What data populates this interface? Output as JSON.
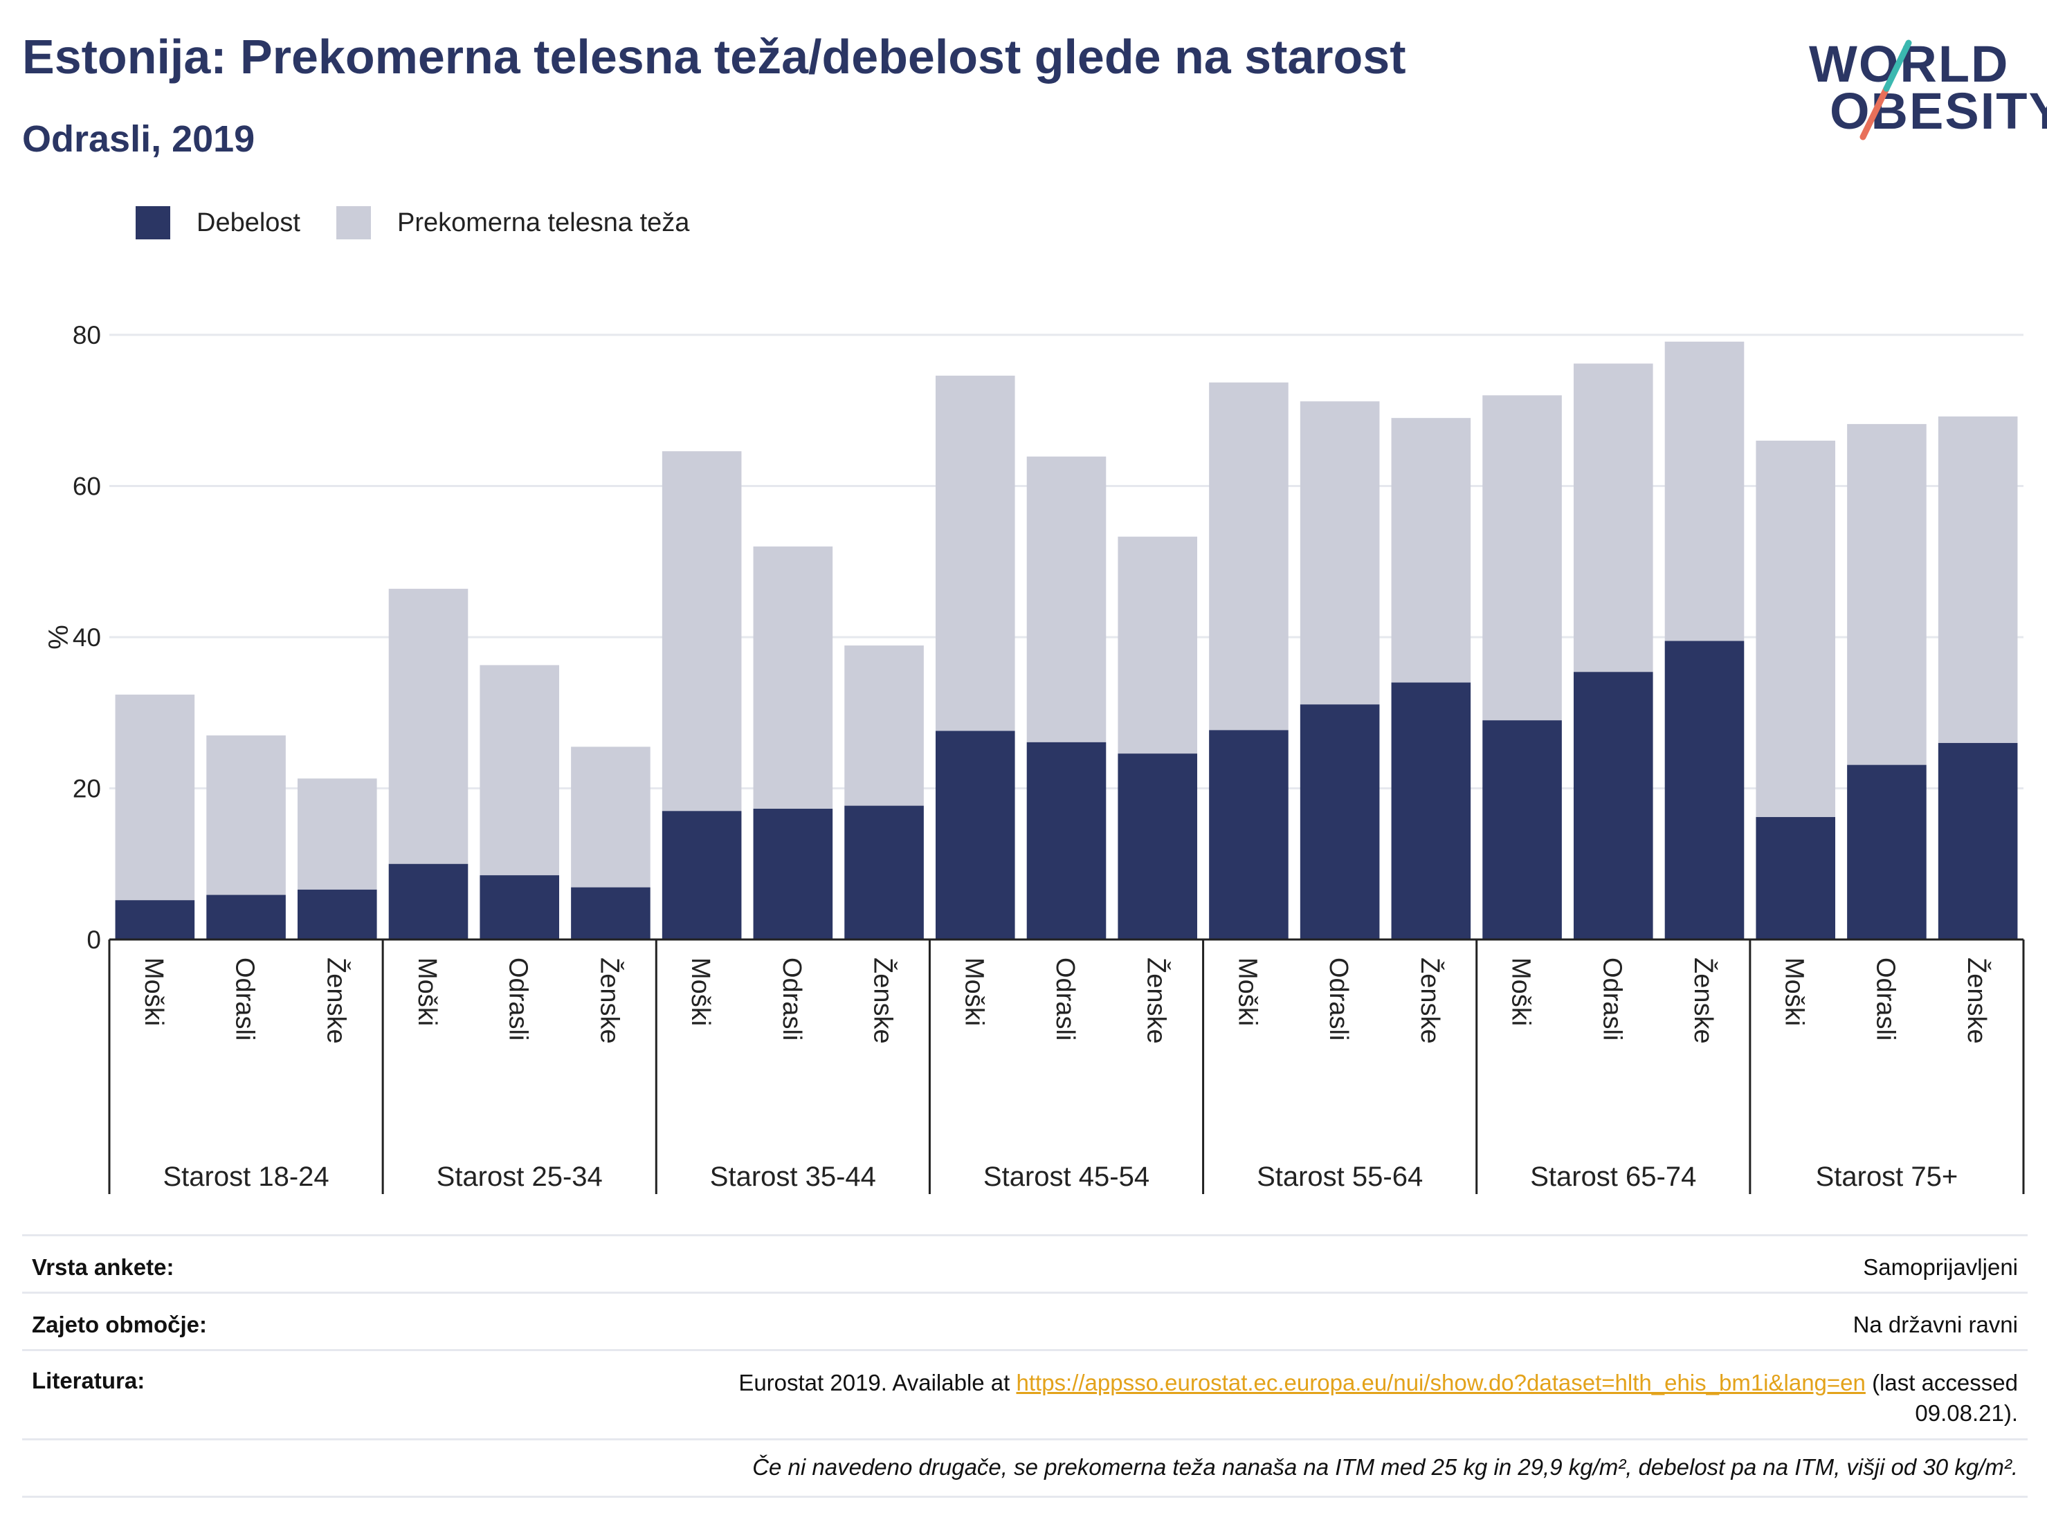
{
  "header": {
    "title": "Estonija: Prekomerna telesna teža/debelost glede na starost",
    "subtitle": "Odrasli, 2019"
  },
  "logo": {
    "line1": "WORLD",
    "line2": "OBESITY"
  },
  "legend": [
    {
      "label": "Debelost",
      "color": "#2b3664"
    },
    {
      "label": "Prekomerna telesna teža",
      "color": "#cbcdd9"
    }
  ],
  "colors": {
    "obesity": "#2b3664",
    "overweight": "#cbcdd9",
    "grid": "#e6e8ee",
    "axis": "#222222"
  },
  "chart_data": {
    "type": "bar",
    "stacked": true,
    "ylabel": "%",
    "ylim": [
      0,
      80
    ],
    "yticks": [
      0,
      20,
      40,
      60,
      80
    ],
    "grid": true,
    "legend_position": "top-left",
    "groups": [
      "Starost 18-24",
      "Starost 25-34",
      "Starost 35-44",
      "Starost 45-54",
      "Starost 55-64",
      "Starost 65-74",
      "Starost 75+"
    ],
    "subcategories": [
      "Moški",
      "Odrasli",
      "Ženske"
    ],
    "series": [
      {
        "name": "Debelost",
        "values": [
          5.2,
          5.9,
          6.6,
          10.0,
          8.5,
          6.9,
          17.0,
          17.3,
          17.7,
          27.6,
          26.1,
          24.6,
          27.7,
          31.1,
          34.0,
          29.0,
          35.4,
          39.5,
          16.2,
          23.1,
          26.0
        ]
      },
      {
        "name": "Prekomerna telesna teža",
        "values": [
          27.2,
          21.1,
          14.7,
          36.4,
          27.8,
          18.6,
          47.6,
          34.7,
          21.2,
          47.0,
          37.8,
          28.7,
          46.0,
          40.1,
          35.0,
          43.0,
          40.8,
          39.6,
          49.8,
          45.1,
          43.2
        ]
      }
    ]
  },
  "info": {
    "survey_label": "Vrsta ankete:",
    "survey_value": "Samoprijavljeni",
    "area_label": "Zajeto območje:",
    "area_value": "Na državni ravni",
    "lit_label": "Literatura:",
    "lit_pre": "Eurostat 2019. Available at",
    "lit_link": "https://appsso.eurostat.ec.europa.eu/nui/show.do?dataset=hlth_ehis_bm1i&lang=en",
    "lit_post": "(last accessed",
    "lit_date": "09.08.21).",
    "note": "Če ni navedeno drugače, se prekomerna teža nanaša na ITM med 25 kg in 29,9 kg/m², debelost pa na ITM, višji od 30 kg/m²."
  }
}
